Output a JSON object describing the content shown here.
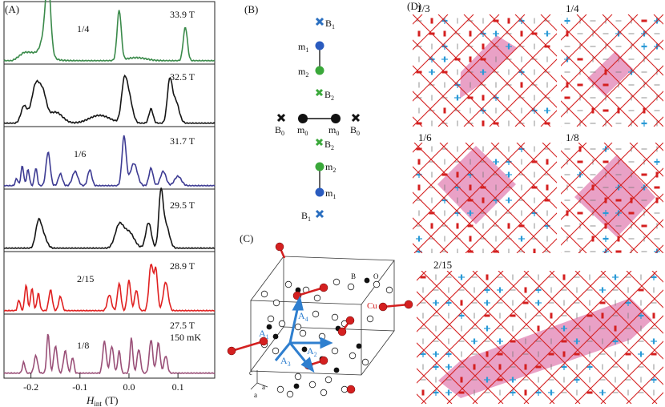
{
  "panel_labels": {
    "a": "(A)",
    "b": "(B)",
    "c": "(C)",
    "d": "(D)"
  },
  "spectra": [
    {
      "plateau": "1/4",
      "field": "33.9 T",
      "color": "#3a8a4a"
    },
    {
      "plateau": "",
      "field": "32.5 T",
      "color": "#151515"
    },
    {
      "plateau": "1/6",
      "field": "31.7 T",
      "color": "#3d3b93"
    },
    {
      "plateau": "",
      "field": "29.5 T",
      "color": "#151515"
    },
    {
      "plateau": "2/15",
      "field": "28.9 T",
      "color": "#e02020"
    },
    {
      "plateau": "1/8",
      "field": "27.5 T",
      "color": "#9a5078",
      "extra": "150 mK"
    }
  ],
  "axis": {
    "ticks": [
      "-0.2",
      "-0.1",
      "0.0",
      "0.1"
    ],
    "xlabel_main": "H",
    "xlabel_sub": "int",
    "xlabel_unit": "(T)"
  },
  "diagram_b": {
    "b1_top": "B",
    "b1_top_sub": "1",
    "m1_top": "m",
    "m1_top_sub": "1",
    "m2_top": "m",
    "m2_top_sub": "2",
    "b2_top": "B",
    "b2_top_sub": "2",
    "b0_left": "B",
    "b0_left_sub": "0",
    "m0_left": "m",
    "m0_left_sub": "0",
    "m0_right": "m",
    "m0_right_sub": "0",
    "b0_right": "B",
    "b0_right_sub": "0",
    "b2_bot": "B",
    "b2_bot_sub": "2",
    "m2_bot": "m",
    "m2_bot_sub": "2",
    "m1_bot": "m",
    "m1_bot_sub": "1",
    "b1_bot": "B",
    "b1_bot_sub": "1"
  },
  "diagram_c": {
    "label_b": "B",
    "label_o": "O",
    "label_cu": "Cu",
    "a1": "A",
    "a1_sub": "1",
    "a2": "A",
    "a2_sub": "2",
    "a3": "A",
    "a3_sub": "3",
    "a4": "A",
    "a4_sub": "4",
    "ax_c": "c",
    "ax_a1": "a",
    "ax_a2": "a"
  },
  "lattices": [
    {
      "fraction": "1/3"
    },
    {
      "fraction": "1/4"
    },
    {
      "fraction": "1/6"
    },
    {
      "fraction": "1/8"
    },
    {
      "fraction": "2/15"
    }
  ],
  "colors": {
    "spin_red": "#d42020",
    "spin_blue": "#2a9ad6",
    "cell_fill": "#e48ab8"
  }
}
